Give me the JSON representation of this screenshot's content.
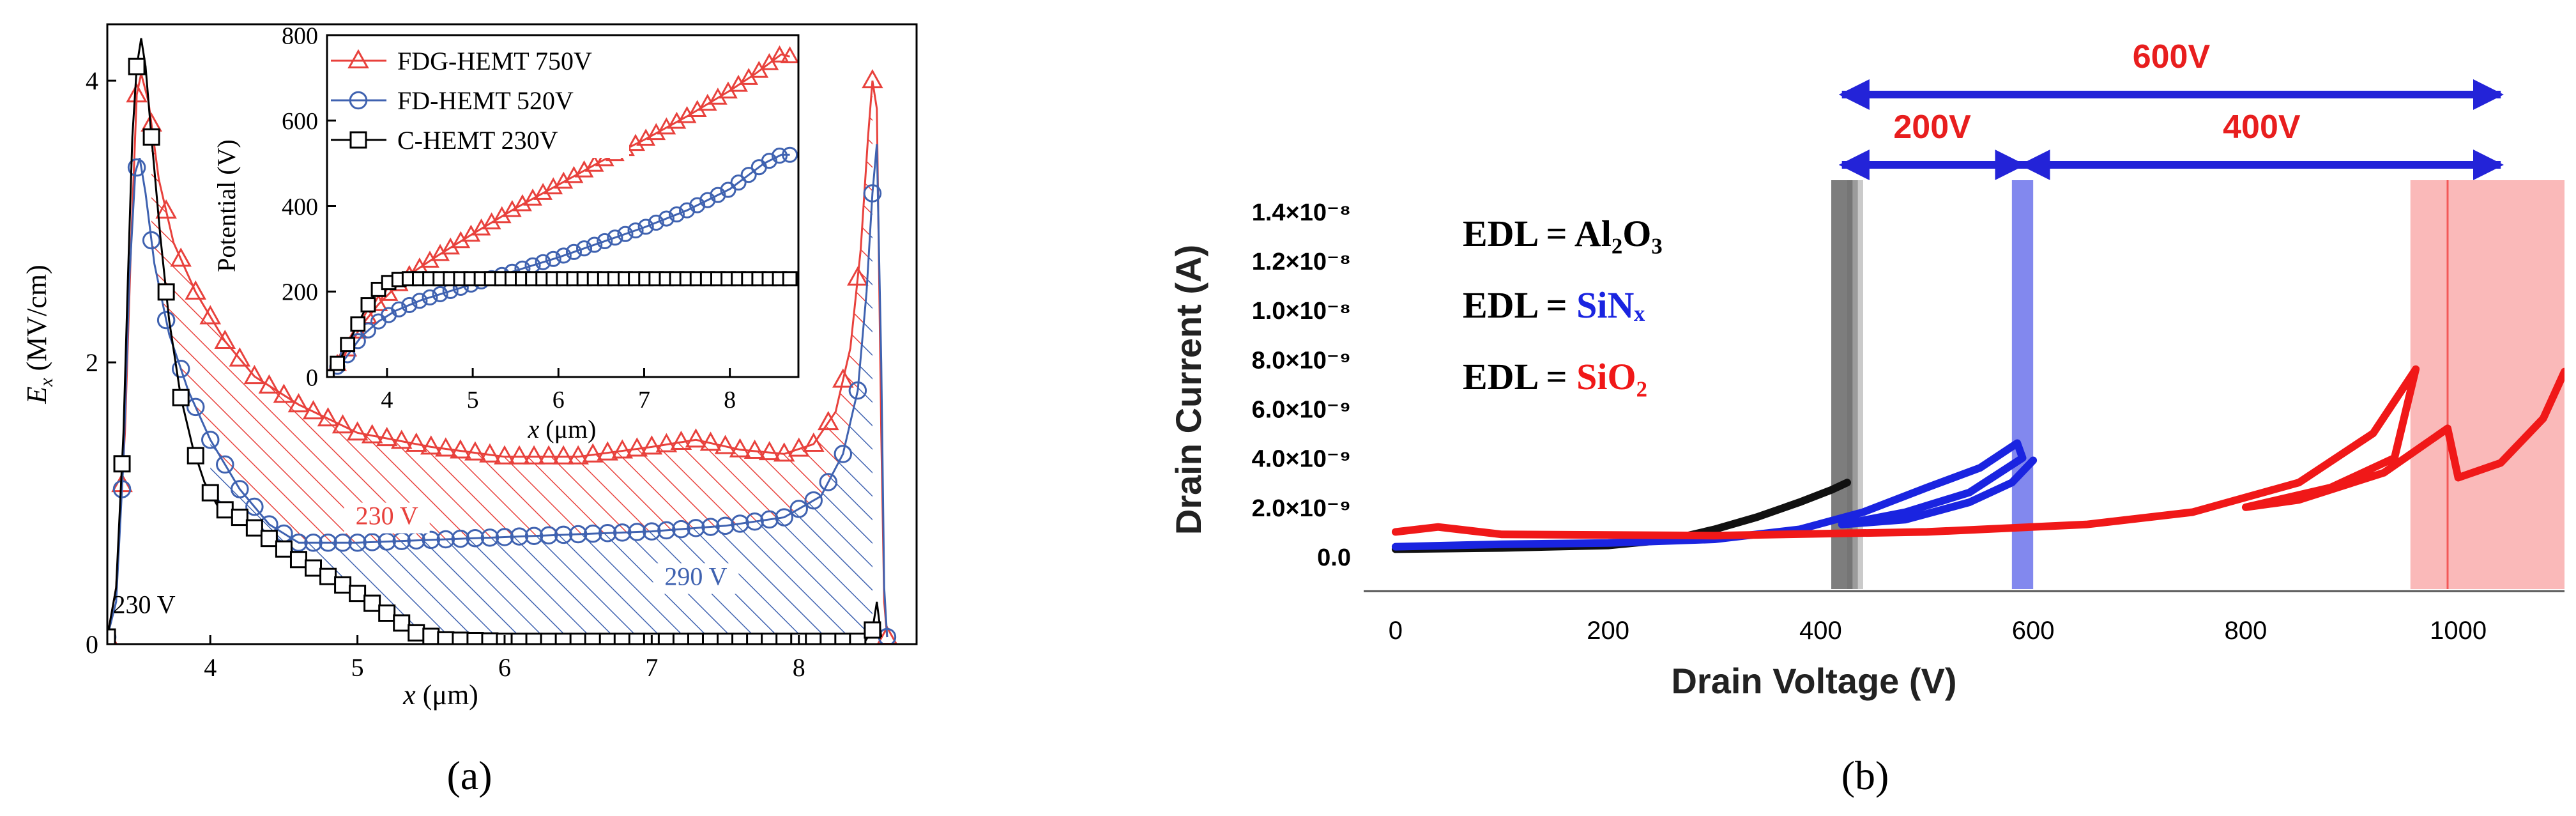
{
  "panel_labels": {
    "a": "(a)",
    "b": "(b)"
  },
  "colors": {
    "fdg": "#e8413c",
    "fd": "#3f62b0",
    "c": "#000000",
    "b_black": "#111111",
    "b_blue": "#1a24e0",
    "b_red": "#f01818",
    "arrow": "#2323d8",
    "b_red_label": "#e81e1e"
  },
  "chart_data": [
    {
      "id": "a_main",
      "type": "line",
      "xlabel": "x (μm)",
      "ylabel": "Ex (MV/cm)",
      "xlim": [
        3.3,
        8.8
      ],
      "ylim": [
        0,
        4.4
      ],
      "xticks": [
        4,
        5,
        6,
        7,
        8
      ],
      "yticks": [
        0,
        2,
        4
      ],
      "series": [
        {
          "name": "FDG-HEMT 750V",
          "color": "#e8413c",
          "marker": "triangle",
          "points": [
            [
              3.3,
              0.05
            ],
            [
              3.36,
              0.4
            ],
            [
              3.42,
              1.5
            ],
            [
              3.46,
              2.8
            ],
            [
              3.5,
              3.9
            ],
            [
              3.53,
              4.05
            ],
            [
              3.58,
              3.85
            ],
            [
              3.65,
              3.3
            ],
            [
              3.75,
              2.85
            ],
            [
              3.9,
              2.5
            ],
            [
              4.1,
              2.15
            ],
            [
              4.3,
              1.9
            ],
            [
              4.6,
              1.7
            ],
            [
              5.0,
              1.5
            ],
            [
              5.5,
              1.4
            ],
            [
              6.0,
              1.33
            ],
            [
              6.5,
              1.33
            ],
            [
              7.0,
              1.4
            ],
            [
              7.3,
              1.45
            ],
            [
              7.6,
              1.38
            ],
            [
              7.9,
              1.35
            ],
            [
              8.1,
              1.42
            ],
            [
              8.25,
              1.65
            ],
            [
              8.35,
              2.1
            ],
            [
              8.42,
              2.8
            ],
            [
              8.47,
              3.6
            ],
            [
              8.5,
              4.0
            ],
            [
              8.53,
              3.8
            ],
            [
              8.56,
              1.5
            ],
            [
              8.58,
              0.3
            ],
            [
              8.6,
              0.05
            ]
          ]
        },
        {
          "name": "FD-HEMT 520V",
          "color": "#3f62b0",
          "marker": "circle",
          "points": [
            [
              3.3,
              0.05
            ],
            [
              3.36,
              0.3
            ],
            [
              3.41,
              1.3
            ],
            [
              3.45,
              2.6
            ],
            [
              3.49,
              3.35
            ],
            [
              3.52,
              3.45
            ],
            [
              3.56,
              3.2
            ],
            [
              3.62,
              2.7
            ],
            [
              3.72,
              2.2
            ],
            [
              3.85,
              1.8
            ],
            [
              4.0,
              1.45
            ],
            [
              4.2,
              1.1
            ],
            [
              4.4,
              0.85
            ],
            [
              4.6,
              0.72
            ],
            [
              5.0,
              0.72
            ],
            [
              5.5,
              0.74
            ],
            [
              6.0,
              0.76
            ],
            [
              6.5,
              0.78
            ],
            [
              7.0,
              0.8
            ],
            [
              7.5,
              0.84
            ],
            [
              7.9,
              0.9
            ],
            [
              8.15,
              1.05
            ],
            [
              8.3,
              1.35
            ],
            [
              8.4,
              1.8
            ],
            [
              8.46,
              2.5
            ],
            [
              8.5,
              3.2
            ],
            [
              8.53,
              3.55
            ],
            [
              8.56,
              2.0
            ],
            [
              8.58,
              0.4
            ],
            [
              8.6,
              0.05
            ]
          ]
        },
        {
          "name": "C-HEMT 230V",
          "color": "#000000",
          "marker": "square",
          "points": [
            [
              3.3,
              0.05
            ],
            [
              3.36,
              0.4
            ],
            [
              3.41,
              1.5
            ],
            [
              3.44,
              2.6
            ],
            [
              3.47,
              3.6
            ],
            [
              3.5,
              4.1
            ],
            [
              3.53,
              4.3
            ],
            [
              3.56,
              4.1
            ],
            [
              3.6,
              3.6
            ],
            [
              3.66,
              2.9
            ],
            [
              3.72,
              2.3
            ],
            [
              3.8,
              1.75
            ],
            [
              3.88,
              1.4
            ],
            [
              3.96,
              1.15
            ],
            [
              4.05,
              0.98
            ],
            [
              4.2,
              0.9
            ],
            [
              4.4,
              0.75
            ],
            [
              4.6,
              0.6
            ],
            [
              4.8,
              0.48
            ],
            [
              5.0,
              0.36
            ],
            [
              5.2,
              0.22
            ],
            [
              5.4,
              0.08
            ],
            [
              5.6,
              0.03
            ],
            [
              6.0,
              0.02
            ],
            [
              7.0,
              0.02
            ],
            [
              8.0,
              0.02
            ],
            [
              8.45,
              0.02
            ],
            [
              8.5,
              0.1
            ],
            [
              8.53,
              0.3
            ],
            [
              8.56,
              0.05
            ]
          ]
        }
      ],
      "annotations": [
        {
          "text": "230 V",
          "color": "#e8413c",
          "x": 5.2,
          "y": 0.85,
          "boxed": true
        },
        {
          "text": "290 V",
          "color": "#3f62b0",
          "x": 7.3,
          "y": 0.42,
          "boxed": true
        },
        {
          "text": "230 V",
          "color": "#000000",
          "x": 3.55,
          "y": 0.22,
          "boxed": false
        }
      ],
      "shaded": [
        "FDG-HEMT minus FD-HEMT (red hatch)",
        "FD-HEMT minus C-HEMT (blue hatch)"
      ]
    },
    {
      "id": "a_inset",
      "type": "line",
      "xlabel": "x (μm)",
      "ylabel": "Potential (V)",
      "xlim": [
        3.3,
        8.8
      ],
      "ylim": [
        0,
        800
      ],
      "xticks": [
        4,
        5,
        6,
        7,
        8
      ],
      "yticks": [
        0,
        200,
        400,
        600,
        800
      ],
      "legend_position": "top-left",
      "series": [
        {
          "name": "FDG-HEMT 750V",
          "color": "#e8413c",
          "marker": "triangle",
          "points": [
            [
              3.3,
              0
            ],
            [
              3.5,
              50
            ],
            [
              3.7,
              120
            ],
            [
              3.9,
              170
            ],
            [
              4.1,
              210
            ],
            [
              4.3,
              245
            ],
            [
              4.6,
              285
            ],
            [
              5.0,
              335
            ],
            [
              5.5,
              395
            ],
            [
              6.0,
              450
            ],
            [
              6.5,
              505
            ],
            [
              7.0,
              555
            ],
            [
              7.5,
              610
            ],
            [
              8.0,
              670
            ],
            [
              8.3,
              710
            ],
            [
              8.6,
              755
            ],
            [
              8.7,
              750
            ]
          ]
        },
        {
          "name": "FD-HEMT 520V",
          "color": "#3f62b0",
          "marker": "circle",
          "points": [
            [
              3.3,
              0
            ],
            [
              3.5,
              40
            ],
            [
              3.7,
              95
            ],
            [
              3.9,
              130
            ],
            [
              4.1,
              155
            ],
            [
              4.4,
              180
            ],
            [
              4.8,
              205
            ],
            [
              5.2,
              230
            ],
            [
              5.6,
              255
            ],
            [
              6.0,
              280
            ],
            [
              6.5,
              315
            ],
            [
              7.0,
              350
            ],
            [
              7.5,
              390
            ],
            [
              8.0,
              440
            ],
            [
              8.4,
              500
            ],
            [
              8.6,
              520
            ],
            [
              8.7,
              520
            ]
          ]
        },
        {
          "name": "C-HEMT 230V",
          "color": "#000000",
          "marker": "square",
          "points": [
            [
              3.3,
              0
            ],
            [
              3.45,
              40
            ],
            [
              3.6,
              100
            ],
            [
              3.75,
              160
            ],
            [
              3.9,
              205
            ],
            [
              4.05,
              225
            ],
            [
              4.2,
              230
            ],
            [
              4.5,
              230
            ],
            [
              5.0,
              230
            ],
            [
              6.0,
              230
            ],
            [
              7.0,
              230
            ],
            [
              8.0,
              230
            ],
            [
              8.7,
              230
            ]
          ]
        }
      ]
    },
    {
      "id": "b",
      "type": "line",
      "xlabel": "Drain Voltage (V)",
      "ylabel": "Drain Current (A)",
      "xlim": [
        -30,
        1100
      ],
      "ylim": [
        -1.4e-09,
        1.48e-08
      ],
      "xticks": [
        0,
        200,
        400,
        600,
        800,
        1000
      ],
      "yticks": [
        0,
        2e-09,
        4e-09,
        6e-09,
        8e-09,
        1e-08,
        1.2e-08,
        1.4e-08
      ],
      "ytick_labels": [
        "0.0",
        "2.0×10⁻⁹",
        "4.0×10⁻⁹",
        "6.0×10⁻⁹",
        "8.0×10⁻⁹",
        "1.0×10⁻⁸",
        "1.2×10⁻⁸",
        "1.4×10⁻⁸"
      ],
      "series": [
        {
          "name": "EDL = Al2O3",
          "color": "#111111",
          "points": [
            [
              0,
              3e-10
            ],
            [
              100,
              3.5e-10
            ],
            [
              200,
              4.5e-10
            ],
            [
              260,
              7e-10
            ],
            [
              300,
              1.1e-09
            ],
            [
              340,
              1.6e-09
            ],
            [
              380,
              2.2e-09
            ],
            [
              410,
              2.7e-09
            ],
            [
              425,
              3e-09
            ]
          ]
        },
        {
          "name": "EDL = SiNx",
          "color": "#1a24e0",
          "points": [
            [
              0,
              4e-10
            ],
            [
              100,
              5e-10
            ],
            [
              200,
              5.5e-10
            ],
            [
              300,
              7e-10
            ],
            [
              380,
              1.1e-09
            ],
            [
              440,
              1.8e-09
            ],
            [
              500,
              2.8e-09
            ],
            [
              550,
              3.6e-09
            ],
            [
              585,
              4.6e-09
            ],
            [
              590,
              4e-09
            ],
            [
              540,
              2.6e-09
            ],
            [
              480,
              1.8e-09
            ],
            [
              420,
              1.3e-09
            ],
            [
              480,
              1.5e-09
            ],
            [
              540,
              2.2e-09
            ],
            [
              580,
              3e-09
            ],
            [
              600,
              3.9e-09
            ]
          ]
        },
        {
          "name": "EDL = SiO2",
          "color": "#f01818",
          "points": [
            [
              0,
              1e-09
            ],
            [
              40,
              1.2e-09
            ],
            [
              100,
              9e-10
            ],
            [
              300,
              8.5e-10
            ],
            [
              500,
              1e-09
            ],
            [
              650,
              1.3e-09
            ],
            [
              750,
              1.8e-09
            ],
            [
              850,
              3e-09
            ],
            [
              920,
              5e-09
            ],
            [
              960,
              7.6e-09
            ],
            [
              940,
              4e-09
            ],
            [
              880,
              2.8e-09
            ],
            [
              800,
              2e-09
            ],
            [
              850,
              2.3e-09
            ],
            [
              930,
              3.4e-09
            ],
            [
              990,
              5.2e-09
            ],
            [
              1000,
              3.2e-09
            ],
            [
              1040,
              3.8e-09
            ],
            [
              1080,
              5.6e-09
            ],
            [
              1100,
              7.5e-09
            ]
          ]
        }
      ],
      "breakdown_bands": [
        {
          "series": "EDL = Al2O3",
          "x_from": 410,
          "x_to": 435,
          "color": "#111111"
        },
        {
          "series": "EDL = SiNx",
          "x_from": 580,
          "x_to": 600,
          "color": "#1a24e0"
        },
        {
          "series": "EDL = SiO2",
          "x_from": 955,
          "x_to": 1100,
          "color": "#f01818"
        }
      ],
      "legend": [
        "EDL = Al₂O₃",
        "EDL = SiNₓ",
        "EDL = SiO₂"
      ],
      "arrows": [
        {
          "label": "600V",
          "x_from": 420,
          "x_to": 1040
        },
        {
          "label": "200V",
          "x_from": 420,
          "x_to": 590
        },
        {
          "label": "400V",
          "x_from": 590,
          "x_to": 1040
        }
      ]
    }
  ]
}
